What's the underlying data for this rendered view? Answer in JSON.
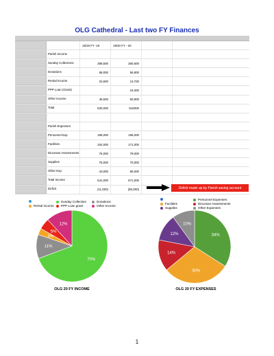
{
  "title": "OLG Cathedral - Last two FY Finances",
  "table": {
    "rows": [
      {
        "label": "",
        "v1": "18/19 FY -19",
        "v2": "19/20 FY - 20",
        "header": true
      },
      {
        "label": "Parish Income",
        "v1": "",
        "v2": ""
      },
      {
        "label": "Sunday Collections",
        "v1": "398,500",
        "v2": "360,600"
      },
      {
        "label": "Donations",
        "v1": "58,000",
        "v2": "56,800"
      },
      {
        "label": "Rental Income",
        "v1": "23,600",
        "v2": "13,700"
      },
      {
        "label": "PPP Loan (Grant)",
        "v1": "",
        "v2": "24,000"
      },
      {
        "label": "Other Income",
        "v1": "49,600",
        "v2": "60,900"
      },
      {
        "label": "Total",
        "v1": "530,000",
        "v2": "516000"
      },
      {
        "label": "",
        "v1": "",
        "v2": ""
      },
      {
        "label": "Parish Expenses",
        "v1": "",
        "v2": ""
      },
      {
        "label": "Personnel Exp",
        "v1": "185,000",
        "v2": "196,000"
      },
      {
        "label": "Facilities",
        "v1": "162,000",
        "v2": "171,000"
      },
      {
        "label": "Diocesan Assessments",
        "v1": "76,000",
        "v2": "79,000"
      },
      {
        "label": "Supplies",
        "v1": "75,000",
        "v2": "70,000"
      },
      {
        "label": "Other Exp.",
        "v1": "43,000",
        "v2": "55,000"
      },
      {
        "label": "Total Income",
        "v1": "541,000",
        "v2": "571,000"
      },
      {
        "label": "Deficit",
        "v1": "(11,000)",
        "v2": "(55,000)"
      }
    ]
  },
  "deficit_note": "Deficit made up by Parish saving account",
  "chart_data": [
    {
      "type": "pie",
      "title": "OLG 20 FY INCOME",
      "legend_position": "top",
      "slices": [
        {
          "name": "Sunday Collection",
          "value": 70,
          "label": "70%",
          "color": "#5ad13e"
        },
        {
          "name": "Donations",
          "value": 11,
          "label": "11%",
          "color": "#8e8e8e"
        },
        {
          "name": "Rental Income",
          "value": 3,
          "label": "3%",
          "color": "#f5a524"
        },
        {
          "name": "PPP Loan grant",
          "value": 5,
          "label": "5%",
          "color": "#e8231a"
        },
        {
          "name": "Other Income",
          "value": 12,
          "label": "12%",
          "color": "#d12e7c"
        }
      ],
      "legend_order": [
        "Donations-dot-blue",
        "Sunday Collection",
        "Donations",
        "Rental Income",
        "PPP Loan grant",
        "Other Income"
      ],
      "legend": [
        {
          "name": "",
          "color": "#2e9bd6"
        },
        {
          "name": "Sunday Collection",
          "color": "#5ad13e"
        },
        {
          "name": "Donations",
          "color": "#8e8e8e"
        },
        {
          "name": "Rental Income",
          "color": "#f5a524"
        },
        {
          "name": "PPP Loan grant",
          "color": "#e8231a"
        },
        {
          "name": "Other Income",
          "color": "#d12e7c"
        }
      ]
    },
    {
      "type": "pie",
      "title": "OLG 20 FY  EXPENSES",
      "legend_position": "top",
      "slices": [
        {
          "name": "Personnel Expenses",
          "value": 34,
          "label": "34%",
          "color": "#56a03c"
        },
        {
          "name": "Facilities",
          "value": 30,
          "label": "30%",
          "color": "#f0a52a"
        },
        {
          "name": "Diocesan Assessments",
          "value": 14,
          "label": "14%",
          "color": "#c8232d"
        },
        {
          "name": "Supplies",
          "value": 12,
          "label": "12%",
          "color": "#6a3a8c"
        },
        {
          "name": "Other Expenses",
          "value": 10,
          "label": "10%",
          "color": "#8e8e8e"
        }
      ],
      "legend": [
        {
          "name": "",
          "color": "#2e6bc4"
        },
        {
          "name": "Personnel Expenses",
          "color": "#56a03c"
        },
        {
          "name": "Facilities",
          "color": "#f0a52a"
        },
        {
          "name": "Diocesan Assessments",
          "color": "#c8232d"
        },
        {
          "name": "Supplies",
          "color": "#6a3a8c"
        },
        {
          "name": "Other Expenses",
          "color": "#8e8e8e"
        }
      ]
    }
  ],
  "page_number": "1"
}
